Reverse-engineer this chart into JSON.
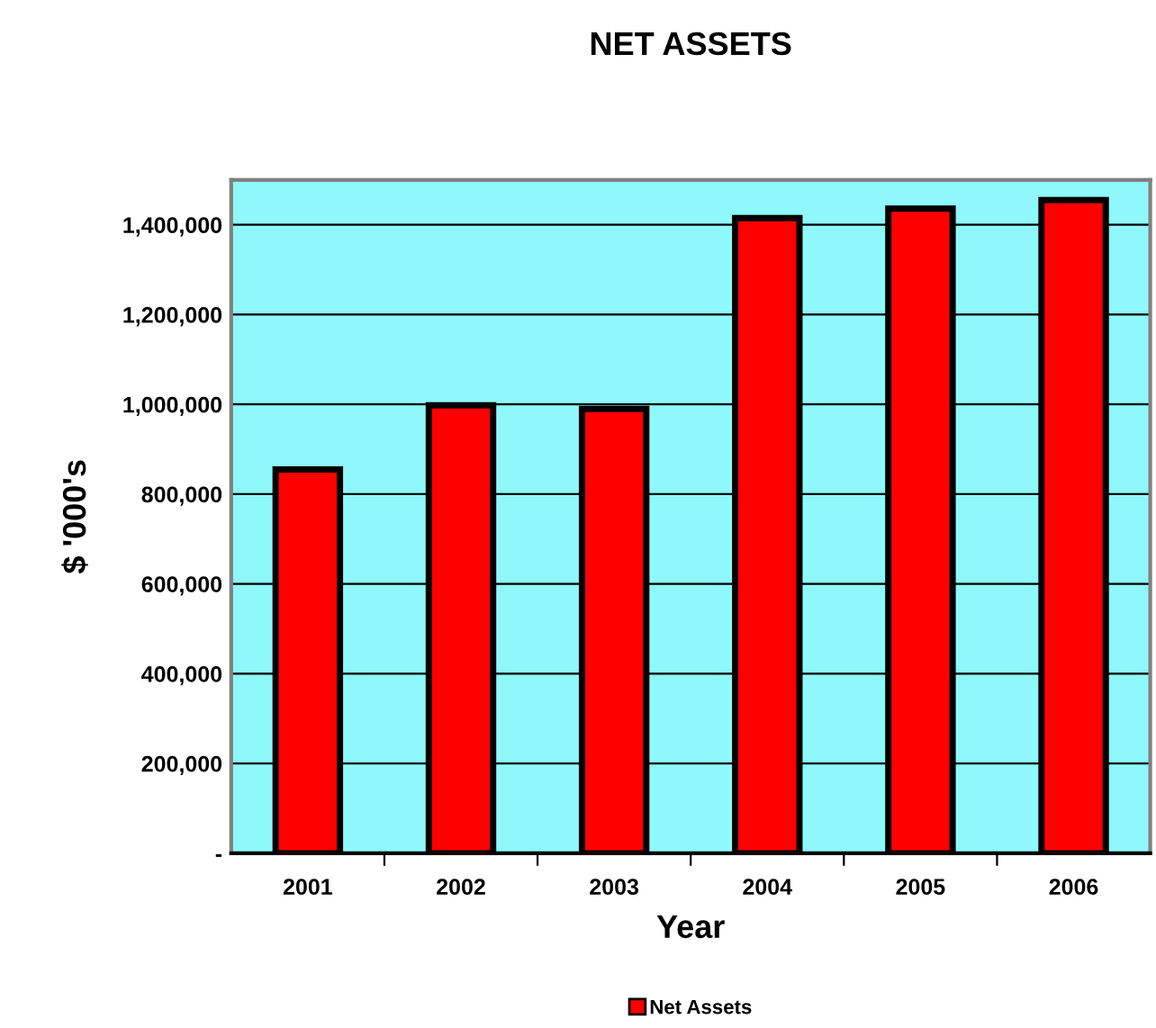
{
  "chart_data": {
    "type": "bar",
    "title": "NET ASSETS",
    "xlabel": "Year",
    "ylabel": "$ '000's",
    "categories": [
      "2001",
      "2002",
      "2003",
      "2004",
      "2005",
      "2006"
    ],
    "series": [
      {
        "name": "Net Assets",
        "color": "#ff0000",
        "values": [
          855000,
          998000,
          990000,
          1415000,
          1436000,
          1455000
        ]
      }
    ],
    "ylim": [
      0,
      1500000
    ],
    "yticks": [
      {
        "value": 0,
        "label": "-"
      },
      {
        "value": 200000,
        "label": "200,000"
      },
      {
        "value": 400000,
        "label": "400,000"
      },
      {
        "value": 600000,
        "label": "600,000"
      },
      {
        "value": 800000,
        "label": "800,000"
      },
      {
        "value": 1000000,
        "label": "1,000,000"
      },
      {
        "value": 1200000,
        "label": "1,200,000"
      },
      {
        "value": 1400000,
        "label": "1,400,000"
      }
    ],
    "grid": "y",
    "legend": "bottom"
  }
}
